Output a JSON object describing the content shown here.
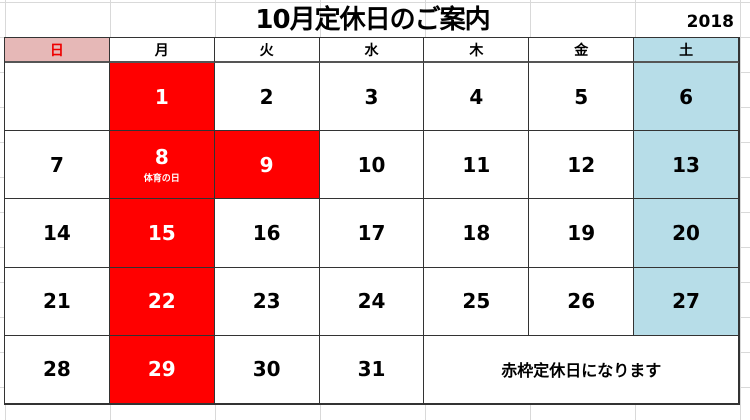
{
  "title": "10月定休日のご案内",
  "year": "2018",
  "weekdays": [
    "日",
    "月",
    "火",
    "水",
    "木",
    "金",
    "土"
  ],
  "colors": {
    "closed": "#ff0000",
    "saturday": "#b7dde8",
    "sunday_header": "#e6b8b7"
  },
  "weeks": [
    [
      {
        "d": ""
      },
      {
        "d": "1",
        "closed": true
      },
      {
        "d": "2"
      },
      {
        "d": "3"
      },
      {
        "d": "4"
      },
      {
        "d": "5"
      },
      {
        "d": "6"
      }
    ],
    [
      {
        "d": "7"
      },
      {
        "d": "8",
        "closed": true,
        "sub": "体育の日"
      },
      {
        "d": "9",
        "closed": true
      },
      {
        "d": "10"
      },
      {
        "d": "11"
      },
      {
        "d": "12"
      },
      {
        "d": "13"
      }
    ],
    [
      {
        "d": "14"
      },
      {
        "d": "15",
        "closed": true
      },
      {
        "d": "16"
      },
      {
        "d": "17"
      },
      {
        "d": "18"
      },
      {
        "d": "19"
      },
      {
        "d": "20"
      }
    ],
    [
      {
        "d": "21"
      },
      {
        "d": "22",
        "closed": true
      },
      {
        "d": "23"
      },
      {
        "d": "24"
      },
      {
        "d": "25"
      },
      {
        "d": "26"
      },
      {
        "d": "27"
      }
    ],
    [
      {
        "d": "28"
      },
      {
        "d": "29",
        "closed": true
      },
      {
        "d": "30"
      },
      {
        "d": "31"
      }
    ]
  ],
  "note": "赤枠定休日になります"
}
